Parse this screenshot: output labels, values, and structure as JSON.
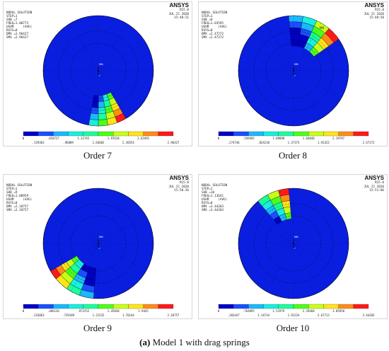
{
  "colors": {
    "background": "#0a1ee0",
    "scale": [
      "#0000c8",
      "#1a4fff",
      "#1ab8ff",
      "#1aeede",
      "#1aff9a",
      "#4cff1a",
      "#c8ff1a",
      "#ffe41a",
      "#ff8c1a",
      "#ff1a1a"
    ]
  },
  "panels": [
    {
      "id": "order7",
      "header": [
        "NODAL SOLUTION",
        "STEP=1",
        "SUB =7",
        "FREQ=1.00773",
        "USUM     (AVG)",
        "RSYS=0",
        "DMX =2.96427",
        "SMX =2.96427"
      ],
      "logo": "ANSYS",
      "version": "R15.0",
      "date": "JUL 21 2020",
      "time": "15:48:21",
      "legend_top": [
        "0",
        ".658727",
        "1.31745",
        "1.97618",
        "2.63491"
      ],
      "legend_bottom": [
        ".329363",
        ".98809",
        "1.64682",
        "2.30554",
        "2.96427"
      ],
      "caption": "Order 7",
      "mx_label": "",
      "mn_label": "MN"
    },
    {
      "id": "order8",
      "header": [
        "NODAL SOLUTION",
        "STEP=1",
        "SUB =8",
        "FREQ=1.03595",
        "USUM     (AVG)",
        "RSYS=0",
        "DMX =2.47272",
        "SMX =2.47272"
      ],
      "logo": "ANSYS",
      "version": "R15.0",
      "date": "JUL 21 2020",
      "time": "15:48:50",
      "legend_top": [
        "0",
        ".549492",
        "1.09898",
        "1.64848",
        "2.19797"
      ],
      "legend_bottom": [
        ".274746",
        ".824238",
        "1.37373",
        "1.92322",
        "2.47272"
      ],
      "caption": "Order 8",
      "mx_label": "MX",
      "mn_label": "MN"
    },
    {
      "id": "order9",
      "header": [
        "NODAL SOLUTION",
        "STEP=1",
        "SUB =9",
        "FREQ=1.08959",
        "USUM     (AVG)",
        "RSYS=0",
        "DMX =2.18757",
        "SMX =2.18757"
      ],
      "logo": "ANSYS",
      "version": "R15.0",
      "date": "JUL 21 2020",
      "time": "15:50:36",
      "legend_top": [
        "0",
        ".486126",
        ".972252",
        "1.45838",
        "1.9445"
      ],
      "legend_bottom": [
        ".243063",
        ".729189",
        "1.21532",
        "1.70144",
        "2.18757"
      ],
      "caption": "Order 9",
      "mx_label": "",
      "mn_label": "MN"
    },
    {
      "id": "order10",
      "header": [
        "NODAL SOLUTION",
        "STEP=1",
        "SUB =10",
        "FREQ=1.13641",
        "USUM     (AVG)",
        "RSYS=0",
        "DMX =3.44203",
        "SMX =3.44203"
      ],
      "logo": "ANSYS",
      "version": "R15.0",
      "date": "JUL 21 2020",
      "time": "15:51:06",
      "legend_top": [
        "0",
        ".764895",
        "1.52979",
        "2.29468",
        "3.05958"
      ],
      "legend_bottom": [
        ".382447",
        "1.14734",
        "1.91224",
        "2.67713",
        "3.44203"
      ],
      "caption": "Order 10",
      "mx_label": "",
      "mn_label": "MN"
    }
  ],
  "figure_caption": {
    "label": "(a)",
    "text": " Model 1 with drag springs"
  }
}
